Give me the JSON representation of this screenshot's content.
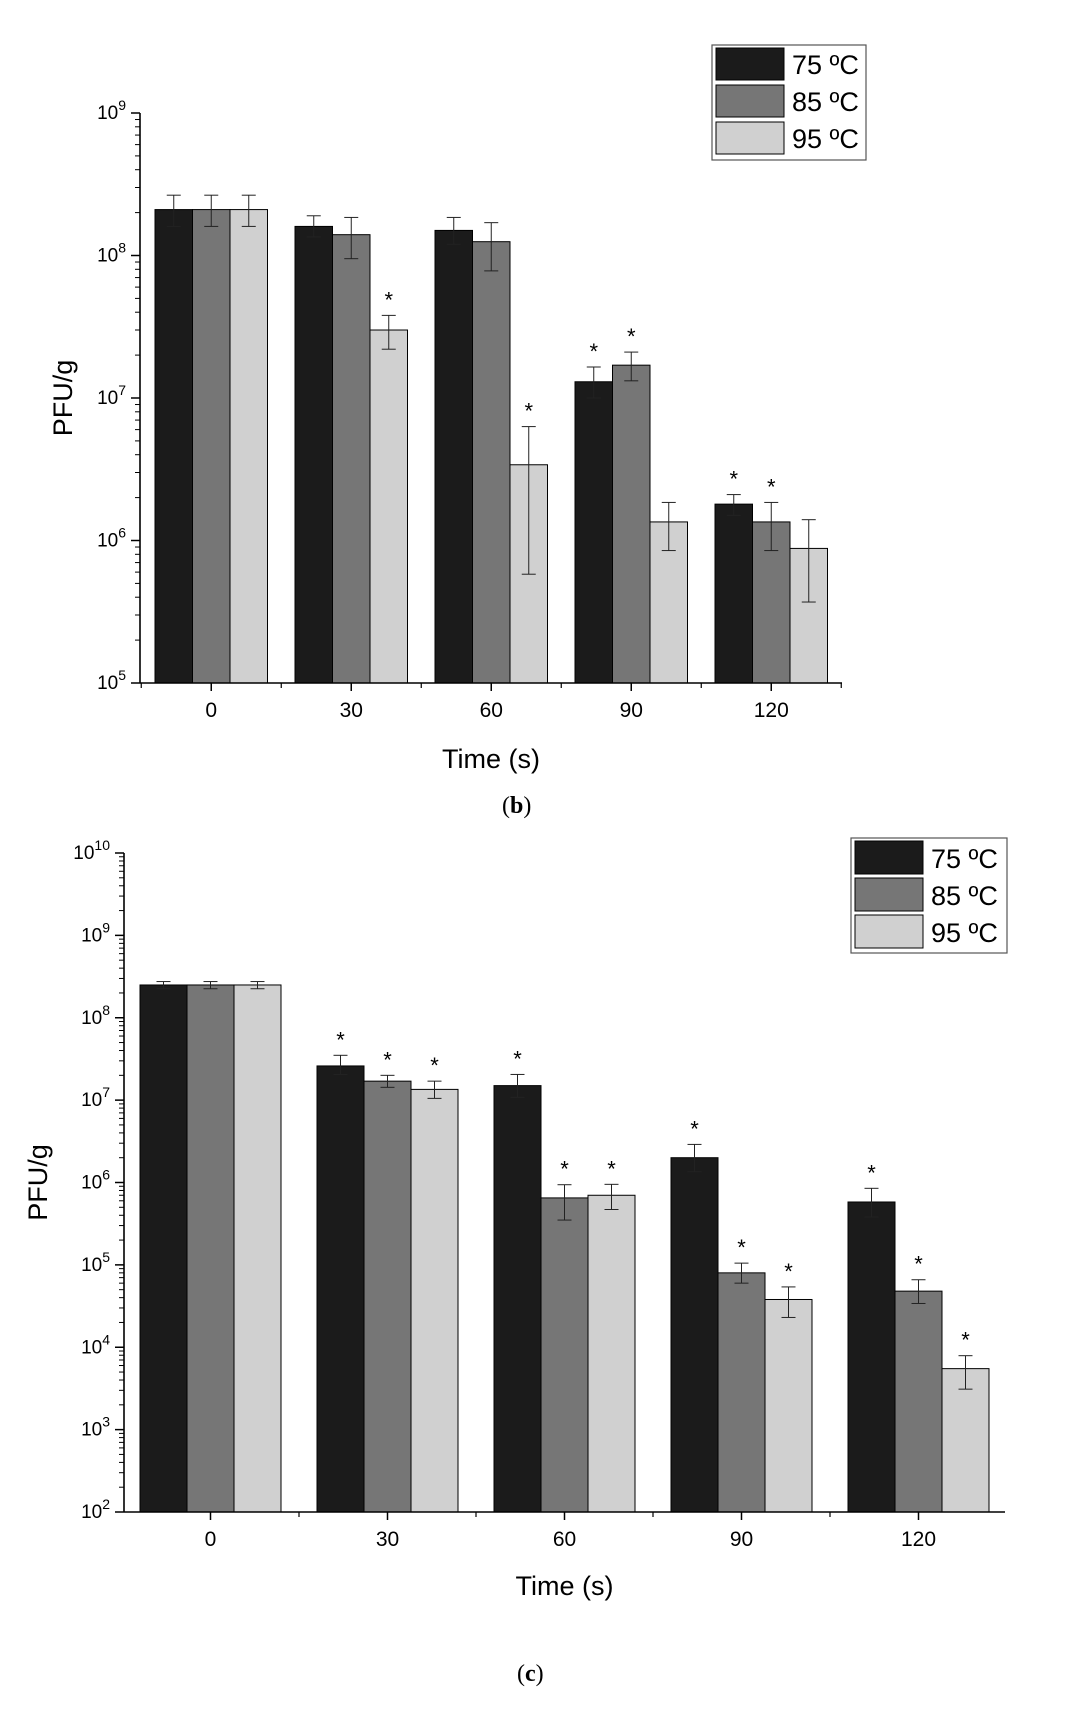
{
  "colors": {
    "series_75": "#1b1b1b",
    "series_85": "#767676",
    "series_95": "#d0d0d0",
    "axis": "#000000"
  },
  "captions": {
    "b": {
      "open": "(",
      "letter": "b",
      "close": ")"
    },
    "c": {
      "open": "(",
      "letter": "c",
      "close": ")"
    }
  },
  "chart_data": [
    {
      "id": "b",
      "type": "bar",
      "scale": "log",
      "title": "",
      "xlabel": "Time (s)",
      "ylabel": "PFU/g",
      "categories": [
        "0",
        "30",
        "60",
        "90",
        "120"
      ],
      "ylim_exp": [
        5,
        9
      ],
      "y_ticks": [
        {
          "base": "10",
          "exp": "5"
        },
        {
          "base": "10",
          "exp": "6"
        },
        {
          "base": "10",
          "exp": "7"
        },
        {
          "base": "10",
          "exp": "8"
        },
        {
          "base": "10",
          "exp": "9"
        }
      ],
      "legend_position": "top-right",
      "series": [
        {
          "name": "75 ºC",
          "values": [
            210000000.0,
            160000000.0,
            150000000.0,
            13000000.0,
            1800000.0
          ],
          "err_low": [
            160000000.0,
            135000000.0,
            120000000.0,
            10000000.0,
            1500000.0
          ],
          "err_high": [
            265000000.0,
            190000000.0,
            185000000.0,
            16500000.0,
            2100000.0
          ],
          "significant": [
            false,
            false,
            false,
            true,
            true
          ]
        },
        {
          "name": "85 ºC",
          "values": [
            210000000.0,
            140000000.0,
            125000000.0,
            17000000.0,
            1350000.0
          ],
          "err_low": [
            160000000.0,
            95000000.0,
            78000000.0,
            13200000.0,
            850000.0
          ],
          "err_high": [
            265000000.0,
            185000000.0,
            170000000.0,
            21000000.0,
            1850000.0
          ],
          "significant": [
            false,
            false,
            false,
            true,
            true
          ]
        },
        {
          "name": "95 ºC",
          "values": [
            210000000.0,
            30000000.0,
            3400000.0,
            1350000.0,
            880000.0
          ],
          "err_low": [
            160000000.0,
            22000000.0,
            580000.0,
            850000.0,
            370000.0
          ],
          "err_high": [
            265000000.0,
            38000000.0,
            6300000.0,
            1850000.0,
            1400000.0
          ],
          "significant": [
            false,
            true,
            true,
            false,
            false
          ]
        }
      ]
    },
    {
      "id": "c",
      "type": "bar",
      "scale": "log",
      "title": "",
      "xlabel": "Time (s)",
      "ylabel": "PFU/g",
      "categories": [
        "0",
        "30",
        "60",
        "90",
        "120"
      ],
      "ylim_exp": [
        2,
        10
      ],
      "y_ticks": [
        {
          "base": "10",
          "exp": "2"
        },
        {
          "base": "10",
          "exp": "3"
        },
        {
          "base": "10",
          "exp": "4"
        },
        {
          "base": "10",
          "exp": "5"
        },
        {
          "base": "10",
          "exp": "6"
        },
        {
          "base": "10",
          "exp": "7"
        },
        {
          "base": "10",
          "exp": "8"
        },
        {
          "base": "10",
          "exp": "9"
        },
        {
          "base": "10",
          "exp": "10"
        }
      ],
      "legend_position": "top-right",
      "series": [
        {
          "name": "75 ºC",
          "values": [
            250000000.0,
            26000000.0,
            15000000.0,
            2000000.0,
            580000.0
          ],
          "err_low": [
            225000000.0,
            20500000.0,
            10800000.0,
            1350000.0,
            380000.0
          ],
          "err_high": [
            275000000.0,
            35000000.0,
            20500000.0,
            2900000.0,
            850000.0
          ],
          "significant": [
            false,
            true,
            true,
            true,
            true
          ]
        },
        {
          "name": "85 ºC",
          "values": [
            250000000.0,
            17000000.0,
            650000.0,
            80000.0,
            48000.0
          ],
          "err_low": [
            225000000.0,
            14300000.0,
            350000.0,
            60000.0,
            34000.0
          ],
          "err_high": [
            275000000.0,
            20000000.0,
            940000.0,
            105000.0,
            66000.0
          ],
          "significant": [
            false,
            true,
            true,
            true,
            true
          ]
        },
        {
          "name": "95 ºC",
          "values": [
            250000000.0,
            13500000.0,
            700000.0,
            38000.0,
            5500.0
          ],
          "err_low": [
            225000000.0,
            10500000.0,
            470000.0,
            23000.0,
            3100.0
          ],
          "err_high": [
            275000000.0,
            17000000.0,
            950000.0,
            54000.0,
            7900.0
          ],
          "significant": [
            false,
            true,
            true,
            true,
            true
          ]
        }
      ]
    }
  ]
}
